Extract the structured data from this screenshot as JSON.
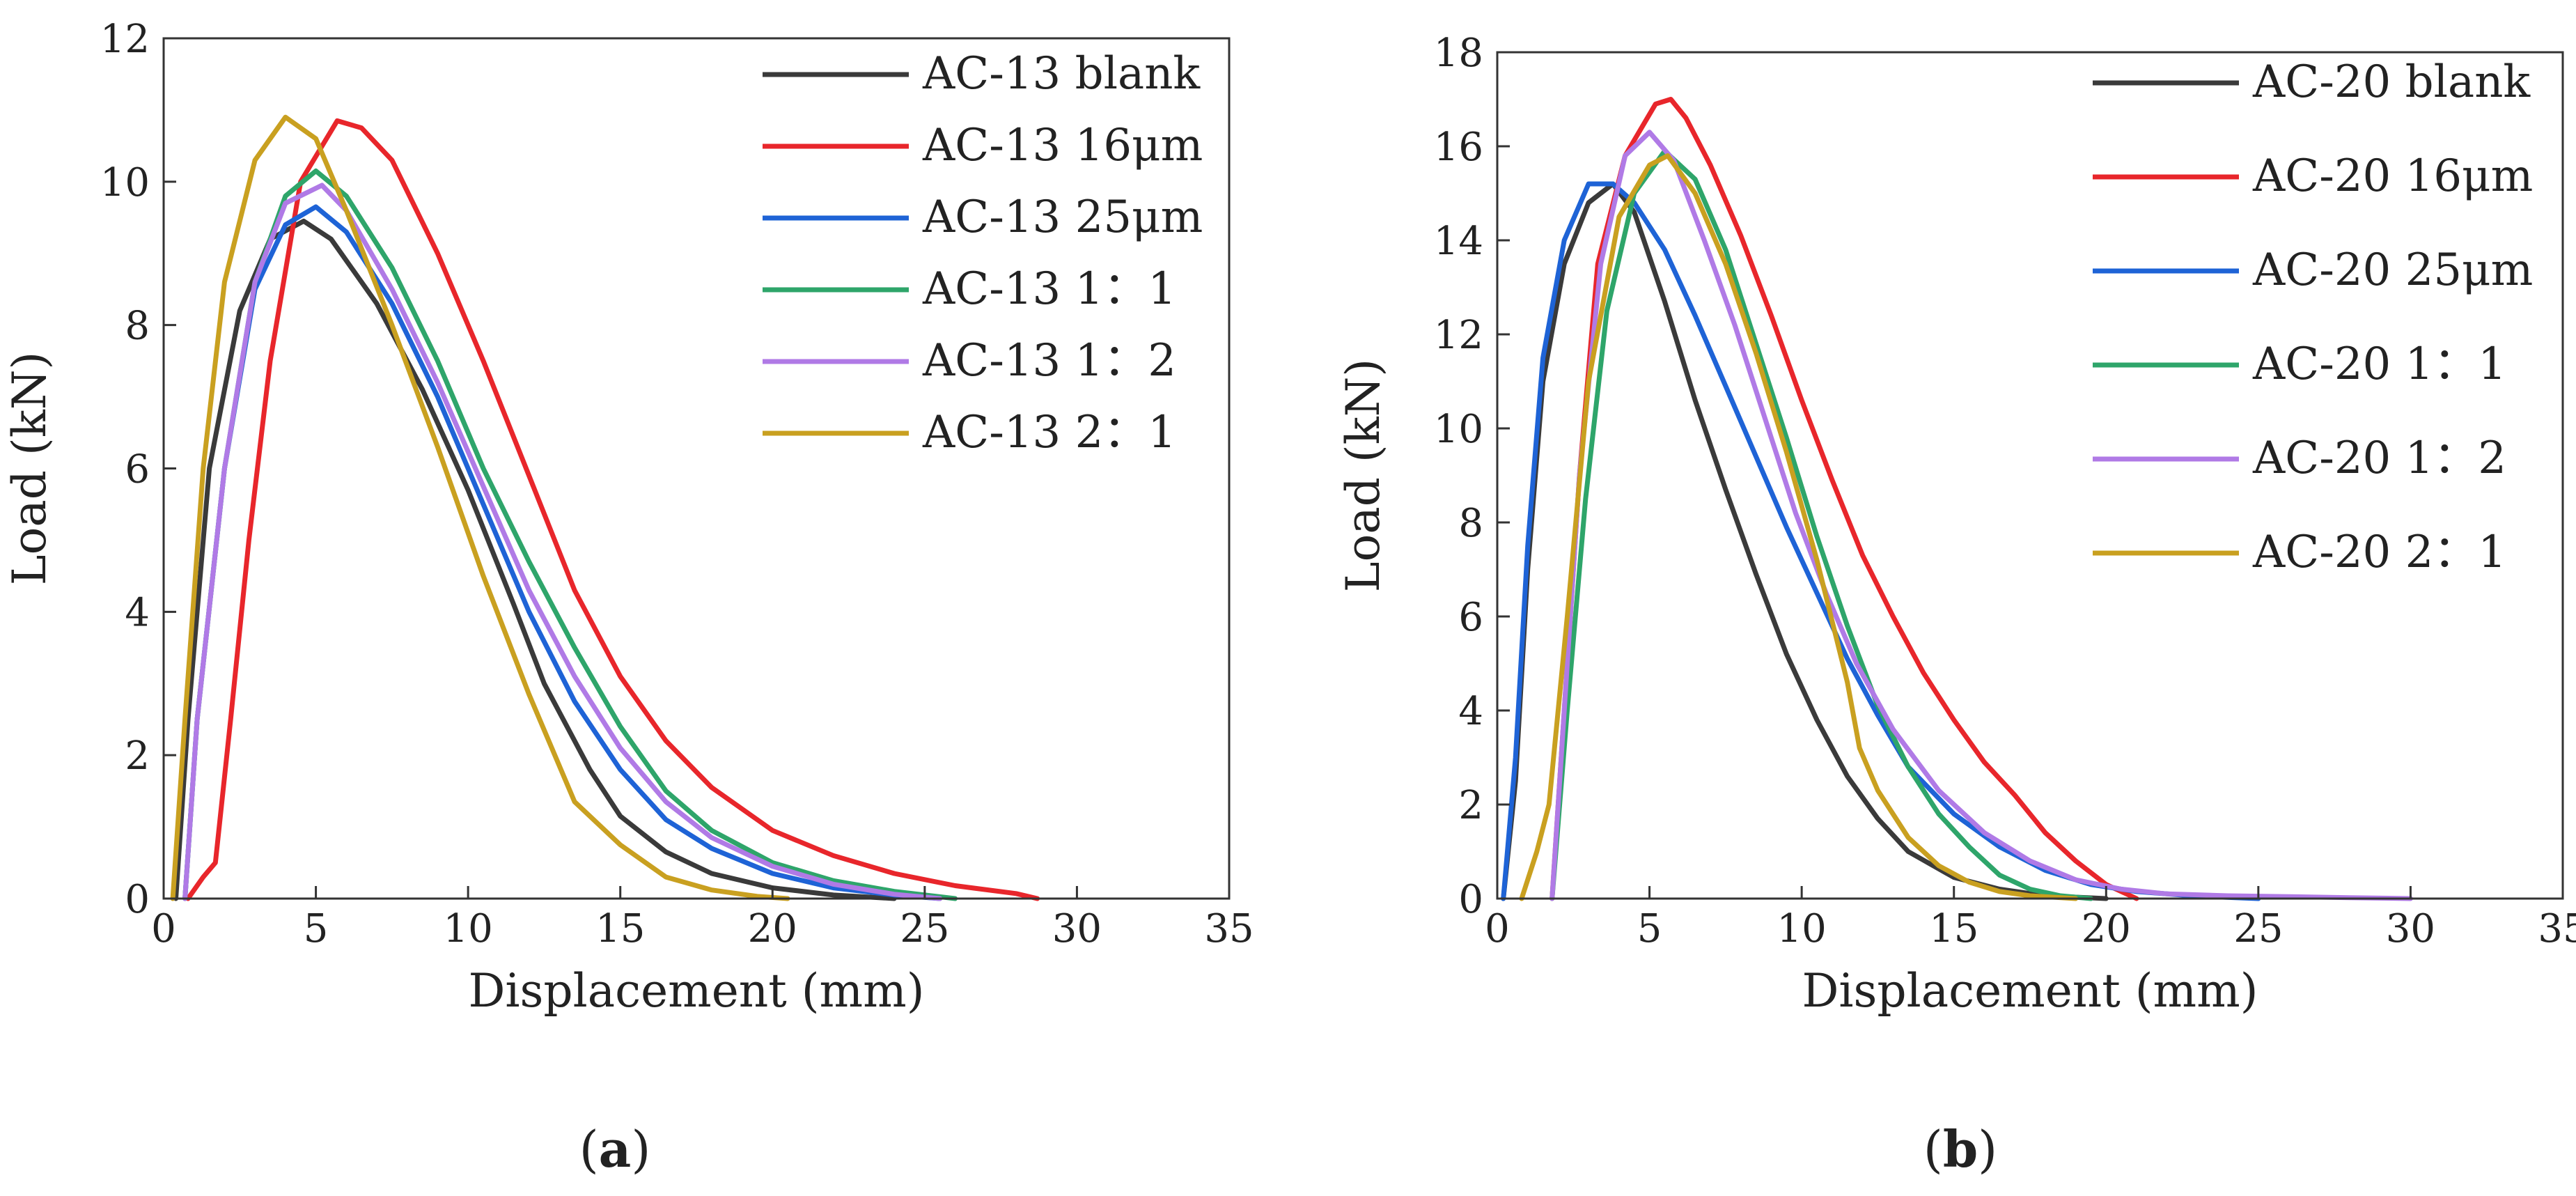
{
  "figure": {
    "panels": [
      {
        "id": "a",
        "caption_letter": "a",
        "chart_data": {
          "type": "line",
          "title": "",
          "xlabel": "Displacement (mm)",
          "ylabel": "Load (kN)",
          "xlim": [
            0,
            35
          ],
          "ylim": [
            0,
            12
          ],
          "xticks": [
            "0",
            "5",
            "10",
            "15",
            "20",
            "25",
            "30",
            "35"
          ],
          "yticks": [
            "0",
            "2",
            "4",
            "6",
            "8",
            "10",
            "12"
          ],
          "legend_position": "top-right",
          "series": [
            {
              "name": "AC-13 blank",
              "color": "#3a3a3a",
              "x": [
                0.4,
                0.8,
                1.5,
                2.5,
                3.5,
                4.6,
                5.5,
                7,
                8.5,
                10,
                11.5,
                12.5,
                14,
                15,
                16.5,
                18,
                20,
                22,
                24
              ],
              "y": [
                0,
                2.5,
                6,
                8.2,
                9.2,
                9.45,
                9.2,
                8.3,
                7.1,
                5.7,
                4.1,
                3.0,
                1.8,
                1.15,
                0.65,
                0.35,
                0.15,
                0.05,
                0
              ]
            },
            {
              "name": "AC-13 16μm",
              "color": "#e8262b",
              "x": [
                0.8,
                1.3,
                1.7,
                2.2,
                2.8,
                3.5,
                4.5,
                5.7,
                6.5,
                7.5,
                9,
                10.5,
                12,
                13.5,
                15,
                16.5,
                18,
                20,
                22,
                24,
                26,
                28,
                28.7
              ],
              "y": [
                0,
                0.3,
                0.5,
                2.5,
                5,
                7.5,
                10,
                10.85,
                10.75,
                10.3,
                9.0,
                7.5,
                5.9,
                4.3,
                3.1,
                2.2,
                1.55,
                0.95,
                0.6,
                0.35,
                0.18,
                0.07,
                0
              ]
            },
            {
              "name": "AC-13 25μm",
              "color": "#1e63d6",
              "x": [
                0.7,
                1.1,
                2,
                3,
                4,
                5,
                6,
                7.5,
                9,
                10.5,
                12,
                13.5,
                15,
                16.5,
                18,
                20,
                22,
                24,
                25.5
              ],
              "y": [
                0,
                2.5,
                6,
                8.5,
                9.4,
                9.65,
                9.3,
                8.3,
                7.0,
                5.5,
                4.0,
                2.75,
                1.8,
                1.1,
                0.7,
                0.35,
                0.15,
                0.05,
                0
              ]
            },
            {
              "name": "AC-13 1：1",
              "color": "#2ea56a",
              "x": [
                0.7,
                1.1,
                2,
                3,
                4,
                5,
                6,
                7.5,
                9,
                10.5,
                12,
                13.5,
                15,
                16.5,
                18,
                20,
                22,
                24,
                26
              ],
              "y": [
                0,
                2.5,
                6,
                8.6,
                9.8,
                10.15,
                9.8,
                8.8,
                7.5,
                6.0,
                4.7,
                3.5,
                2.4,
                1.5,
                0.95,
                0.5,
                0.25,
                0.1,
                0
              ]
            },
            {
              "name": "AC-13 1：2",
              "color": "#b07ae6",
              "x": [
                0.7,
                1.1,
                2,
                3,
                4,
                5.2,
                6,
                7.5,
                9,
                10.5,
                12,
                13.5,
                15,
                16.5,
                18,
                20,
                22,
                24,
                25.5
              ],
              "y": [
                0,
                2.5,
                6,
                8.6,
                9.7,
                9.95,
                9.6,
                8.5,
                7.2,
                5.75,
                4.3,
                3.1,
                2.1,
                1.35,
                0.85,
                0.45,
                0.2,
                0.06,
                0
              ]
            },
            {
              "name": "AC-13 2：1",
              "color": "#c9a020",
              "x": [
                0.3,
                0.7,
                1.3,
                2,
                3,
                4,
                5,
                6,
                7.5,
                9,
                10.5,
                12,
                13.5,
                15,
                16.5,
                18,
                19.5,
                20.5
              ],
              "y": [
                0,
                2.5,
                6,
                8.6,
                10.3,
                10.9,
                10.6,
                9.6,
                8.0,
                6.3,
                4.5,
                2.85,
                1.35,
                0.75,
                0.3,
                0.12,
                0.03,
                0
              ]
            }
          ]
        }
      },
      {
        "id": "b",
        "caption_letter": "b",
        "chart_data": {
          "type": "line",
          "title": "",
          "xlabel": "Displacement (mm)",
          "ylabel": "Load (kN)",
          "xlim": [
            0,
            35
          ],
          "ylim": [
            0,
            18
          ],
          "xticks": [
            "0",
            "5",
            "10",
            "15",
            "20",
            "25",
            "30",
            "35"
          ],
          "yticks": [
            "0",
            "2",
            "4",
            "6",
            "8",
            "10",
            "12",
            "14",
            "16",
            "18"
          ],
          "legend_position": "top-right",
          "series": [
            {
              "name": "AC-20 blank",
              "color": "#3a3a3a",
              "x": [
                0.2,
                0.6,
                1,
                1.5,
                2.2,
                3,
                3.8,
                4.5,
                5.5,
                6.5,
                7.5,
                8.5,
                9.5,
                10.5,
                11.5,
                12.5,
                13.5,
                15,
                16.5,
                18,
                20
              ],
              "y": [
                0,
                2.5,
                7,
                11,
                13.5,
                14.8,
                15.2,
                14.6,
                12.7,
                10.6,
                8.7,
                6.9,
                5.2,
                3.8,
                2.6,
                1.7,
                1.0,
                0.45,
                0.2,
                0.06,
                0
              ]
            },
            {
              "name": "AC-20 16μm",
              "color": "#e8262b",
              "x": [
                1.8,
                2.2,
                2.7,
                3.3,
                4.2,
                5.2,
                5.7,
                6.2,
                7,
                8,
                9,
                10,
                11,
                12,
                13,
                14,
                15,
                16,
                17,
                18,
                19,
                20,
                21
              ],
              "y": [
                0,
                4,
                9,
                13.5,
                15.8,
                16.9,
                17.0,
                16.6,
                15.6,
                14.1,
                12.4,
                10.6,
                8.9,
                7.3,
                6.0,
                4.8,
                3.8,
                2.9,
                2.2,
                1.4,
                0.8,
                0.3,
                0
              ]
            },
            {
              "name": "AC-20 25μm",
              "color": "#1e63d6",
              "x": [
                0.2,
                0.6,
                1,
                1.5,
                2.2,
                3,
                3.8,
                4.5,
                5.5,
                6.5,
                7.5,
                8.5,
                9.5,
                10.5,
                11.5,
                12.5,
                13.5,
                15,
                16.5,
                18,
                19.5,
                21,
                23,
                25
              ],
              "y": [
                0,
                3,
                7.5,
                11.5,
                14,
                15.2,
                15.2,
                14.8,
                13.8,
                12.4,
                10.9,
                9.4,
                7.9,
                6.5,
                5.1,
                3.9,
                2.8,
                1.8,
                1.1,
                0.6,
                0.3,
                0.15,
                0.05,
                0
              ]
            },
            {
              "name": "AC-20 1：1",
              "color": "#2ea56a",
              "x": [
                1.8,
                2.3,
                2.9,
                3.6,
                4.5,
                5.5,
                6.5,
                7.5,
                8.5,
                9.5,
                10.5,
                11.5,
                12.5,
                13.5,
                14.5,
                15.5,
                16.5,
                17.5,
                18.5,
                19.5
              ],
              "y": [
                0,
                4,
                8.5,
                12.5,
                15,
                15.9,
                15.3,
                13.8,
                11.8,
                9.8,
                7.7,
                5.8,
                4.1,
                2.8,
                1.8,
                1.1,
                0.5,
                0.2,
                0.06,
                0
              ]
            },
            {
              "name": "AC-20 1：2",
              "color": "#b07ae6",
              "x": [
                1.8,
                2.2,
                2.7,
                3.4,
                4.2,
                5,
                5.8,
                6.8,
                7.8,
                8.8,
                9.8,
                10.8,
                11.8,
                13,
                14.5,
                16,
                17.5,
                19,
                20.5,
                22,
                24,
                26,
                28,
                30
              ],
              "y": [
                0,
                4,
                9,
                13.5,
                15.8,
                16.3,
                15.7,
                14.0,
                12.2,
                10.2,
                8.2,
                6.5,
                5.0,
                3.6,
                2.3,
                1.4,
                0.8,
                0.4,
                0.2,
                0.1,
                0.06,
                0.04,
                0.02,
                0
              ]
            },
            {
              "name": "AC-20 2：1",
              "color": "#c9a020",
              "x": [
                0.8,
                1.3,
                1.7,
                2.3,
                3,
                4,
                5,
                5.6,
                6.5,
                7.5,
                8.5,
                9.5,
                10.5,
                11.5,
                11.9,
                12.5,
                13.5,
                14.5,
                15.5,
                16.5,
                17.5,
                19
              ],
              "y": [
                0,
                1.0,
                2.0,
                6,
                11,
                14.5,
                15.6,
                15.8,
                15.0,
                13.5,
                11.6,
                9.5,
                7.2,
                4.6,
                3.2,
                2.3,
                1.3,
                0.7,
                0.35,
                0.15,
                0.06,
                0
              ]
            }
          ]
        }
      }
    ]
  }
}
